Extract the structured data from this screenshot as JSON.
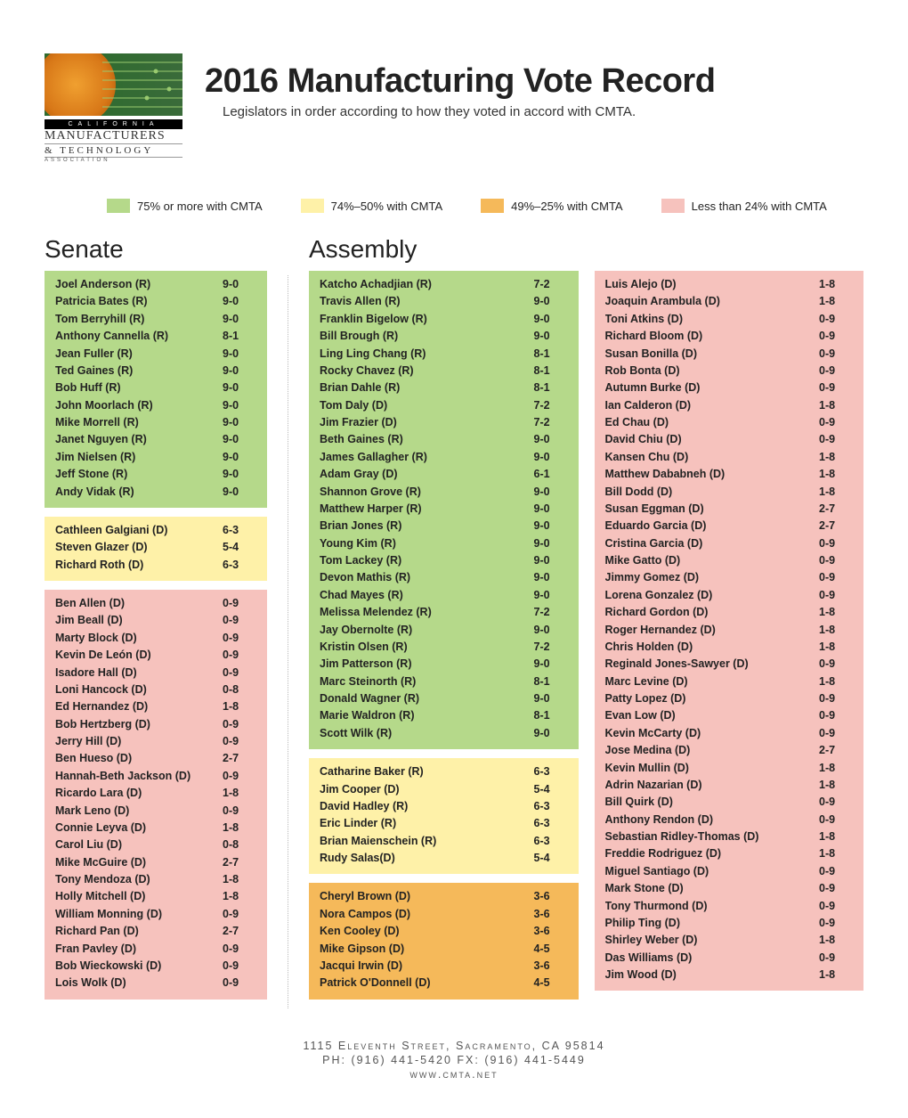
{
  "logo": {
    "line1": "CALIFORNIA",
    "line2": "MANUFACTURERS",
    "line3": "& TECHNOLOGY",
    "line4": "ASSOCIATION"
  },
  "title": "2016 Manufacturing Vote Record",
  "subtitle": "Legislators in order according to how they voted in accord with CMTA.",
  "colors": {
    "green": "#b5d98a",
    "yellow": "#fef1a8",
    "orange": "#f5b95a",
    "pink": "#f6c2bd",
    "text": "#1a1a1a"
  },
  "legend": [
    {
      "color": "#b5d98a",
      "label": "75% or more with CMTA"
    },
    {
      "color": "#fef1a8",
      "label": "74%–50% with CMTA"
    },
    {
      "color": "#f5b95a",
      "label": "49%–25% with CMTA"
    },
    {
      "color": "#f6c2bd",
      "label": "Less than 24% with CMTA"
    }
  ],
  "sections": {
    "senate_title": "Senate",
    "assembly_title": "Assembly"
  },
  "senate": [
    {
      "color": "#b5d98a",
      "rows": [
        {
          "name": "Joel Anderson (R)",
          "score": "9-0"
        },
        {
          "name": "Patricia Bates (R)",
          "score": "9-0"
        },
        {
          "name": "Tom Berryhill (R)",
          "score": "9-0"
        },
        {
          "name": "Anthony Cannella (R)",
          "score": "8-1"
        },
        {
          "name": "Jean Fuller (R)",
          "score": "9-0"
        },
        {
          "name": "Ted Gaines (R)",
          "score": "9-0"
        },
        {
          "name": "Bob Huff (R)",
          "score": "9-0"
        },
        {
          "name": "John Moorlach (R)",
          "score": "9-0"
        },
        {
          "name": "Mike Morrell (R)",
          "score": "9-0"
        },
        {
          "name": "Janet Nguyen (R)",
          "score": "9-0"
        },
        {
          "name": "Jim Nielsen (R)",
          "score": "9-0"
        },
        {
          "name": "Jeff Stone (R)",
          "score": "9-0"
        },
        {
          "name": "Andy Vidak (R)",
          "score": "9-0"
        }
      ]
    },
    {
      "color": "#fef1a8",
      "rows": [
        {
          "name": "Cathleen Galgiani (D)",
          "score": "6-3"
        },
        {
          "name": "Steven Glazer (D)",
          "score": "5-4"
        },
        {
          "name": "Richard Roth (D)",
          "score": "6-3"
        }
      ]
    },
    {
      "color": "#f6c2bd",
      "rows": [
        {
          "name": "Ben Allen (D)",
          "score": "0-9"
        },
        {
          "name": "Jim Beall (D)",
          "score": "0-9"
        },
        {
          "name": "Marty Block (D)",
          "score": "0-9"
        },
        {
          "name": "Kevin De León (D)",
          "score": "0-9"
        },
        {
          "name": "Isadore Hall (D)",
          "score": "0-9"
        },
        {
          "name": "Loni Hancock (D)",
          "score": "0-8"
        },
        {
          "name": "Ed Hernandez (D)",
          "score": "1-8"
        },
        {
          "name": "Bob Hertzberg (D)",
          "score": "0-9"
        },
        {
          "name": "Jerry Hill (D)",
          "score": "0-9"
        },
        {
          "name": "Ben Hueso (D)",
          "score": "2-7"
        },
        {
          "name": "Hannah-Beth Jackson (D)",
          "score": "0-9"
        },
        {
          "name": "Ricardo Lara (D)",
          "score": "1-8"
        },
        {
          "name": "Mark Leno (D)",
          "score": "0-9"
        },
        {
          "name": "Connie Leyva (D)",
          "score": "1-8"
        },
        {
          "name": "Carol Liu (D)",
          "score": "0-8"
        },
        {
          "name": "Mike McGuire (D)",
          "score": "2-7"
        },
        {
          "name": "Tony Mendoza (D)",
          "score": "1-8"
        },
        {
          "name": "Holly Mitchell (D)",
          "score": "1-8"
        },
        {
          "name": "William Monning (D)",
          "score": "0-9"
        },
        {
          "name": "Richard Pan (D)",
          "score": "2-7"
        },
        {
          "name": "Fran Pavley (D)",
          "score": "0-9"
        },
        {
          "name": "Bob Wieckowski (D)",
          "score": "0-9"
        },
        {
          "name": "Lois Wolk (D)",
          "score": "0-9"
        }
      ]
    }
  ],
  "assembly_left": [
    {
      "color": "#b5d98a",
      "rows": [
        {
          "name": "Katcho Achadjian (R)",
          "score": "7-2"
        },
        {
          "name": "Travis Allen (R)",
          "score": "9-0"
        },
        {
          "name": "Franklin Bigelow (R)",
          "score": "9-0"
        },
        {
          "name": "Bill Brough (R)",
          "score": "9-0"
        },
        {
          "name": "Ling Ling Chang (R)",
          "score": "8-1"
        },
        {
          "name": "Rocky Chavez (R)",
          "score": "8-1"
        },
        {
          "name": "Brian Dahle (R)",
          "score": "8-1"
        },
        {
          "name": "Tom Daly (D)",
          "score": "7-2"
        },
        {
          "name": "Jim Frazier (D)",
          "score": "7-2"
        },
        {
          "name": "Beth Gaines (R)",
          "score": "9-0"
        },
        {
          "name": "James Gallagher (R)",
          "score": "9-0"
        },
        {
          "name": "Adam Gray (D)",
          "score": "6-1"
        },
        {
          "name": "Shannon Grove (R)",
          "score": "9-0"
        },
        {
          "name": "Matthew Harper (R)",
          "score": "9-0"
        },
        {
          "name": "Brian Jones (R)",
          "score": "9-0"
        },
        {
          "name": "Young Kim (R)",
          "score": "9-0"
        },
        {
          "name": "Tom Lackey (R)",
          "score": "9-0"
        },
        {
          "name": "Devon Mathis (R)",
          "score": "9-0"
        },
        {
          "name": "Chad Mayes (R)",
          "score": "9-0"
        },
        {
          "name": "Melissa Melendez (R)",
          "score": "7-2"
        },
        {
          "name": "Jay Obernolte (R)",
          "score": "9-0"
        },
        {
          "name": "Kristin Olsen (R)",
          "score": "7-2"
        },
        {
          "name": "Jim Patterson (R)",
          "score": "9-0"
        },
        {
          "name": "Marc Steinorth (R)",
          "score": "8-1"
        },
        {
          "name": "Donald Wagner (R)",
          "score": "9-0"
        },
        {
          "name": "Marie Waldron (R)",
          "score": "8-1"
        },
        {
          "name": "Scott Wilk (R)",
          "score": "9-0"
        }
      ]
    },
    {
      "color": "#fef1a8",
      "rows": [
        {
          "name": "Catharine Baker (R)",
          "score": "6-3"
        },
        {
          "name": "Jim Cooper (D)",
          "score": "5-4"
        },
        {
          "name": "David Hadley (R)",
          "score": "6-3"
        },
        {
          "name": "Eric Linder (R)",
          "score": "6-3"
        },
        {
          "name": "Brian Maienschein (R)",
          "score": "6-3"
        },
        {
          "name": "Rudy Salas(D)",
          "score": "5-4"
        }
      ]
    },
    {
      "color": "#f5b95a",
      "rows": [
        {
          "name": "Cheryl Brown (D)",
          "score": "3-6"
        },
        {
          "name": "Nora Campos (D)",
          "score": "3-6"
        },
        {
          "name": "Ken Cooley (D)",
          "score": "3-6"
        },
        {
          "name": "Mike Gipson (D)",
          "score": "4-5"
        },
        {
          "name": "Jacqui Irwin (D)",
          "score": "3-6"
        },
        {
          "name": "Patrick O'Donnell (D)",
          "score": "4-5"
        }
      ]
    }
  ],
  "assembly_right": [
    {
      "color": "#f6c2bd",
      "rows": [
        {
          "name": "Luis Alejo (D)",
          "score": "1-8"
        },
        {
          "name": "Joaquin Arambula (D)",
          "score": "1-8"
        },
        {
          "name": "Toni Atkins (D)",
          "score": "0-9"
        },
        {
          "name": "Richard Bloom (D)",
          "score": "0-9"
        },
        {
          "name": "Susan Bonilla (D)",
          "score": "0-9"
        },
        {
          "name": "Rob Bonta (D)",
          "score": "0-9"
        },
        {
          "name": "Autumn Burke (D)",
          "score": "0-9"
        },
        {
          "name": "Ian Calderon (D)",
          "score": "1-8"
        },
        {
          "name": "Ed Chau (D)",
          "score": "0-9"
        },
        {
          "name": "David Chiu (D)",
          "score": "0-9"
        },
        {
          "name": "Kansen Chu (D)",
          "score": "1-8"
        },
        {
          "name": "Matthew Dababneh (D)",
          "score": "1-8"
        },
        {
          "name": "Bill Dodd (D)",
          "score": "1-8"
        },
        {
          "name": "Susan Eggman (D)",
          "score": "2-7"
        },
        {
          "name": "Eduardo Garcia (D)",
          "score": "2-7"
        },
        {
          "name": "Cristina Garcia (D)",
          "score": "0-9"
        },
        {
          "name": "Mike Gatto (D)",
          "score": "0-9"
        },
        {
          "name": "Jimmy Gomez (D)",
          "score": "0-9"
        },
        {
          "name": "Lorena Gonzalez (D)",
          "score": "0-9"
        },
        {
          "name": "Richard Gordon (D)",
          "score": "1-8"
        },
        {
          "name": "Roger Hernandez (D)",
          "score": "1-8"
        },
        {
          "name": "Chris Holden (D)",
          "score": "1-8"
        },
        {
          "name": "Reginald Jones-Sawyer (D)",
          "score": "0-9"
        },
        {
          "name": "Marc Levine (D)",
          "score": "1-8"
        },
        {
          "name": "Patty Lopez (D)",
          "score": "0-9"
        },
        {
          "name": "Evan Low (D)",
          "score": "0-9"
        },
        {
          "name": "Kevin McCarty (D)",
          "score": "0-9"
        },
        {
          "name": "Jose Medina (D)",
          "score": "2-7"
        },
        {
          "name": "Kevin Mullin (D)",
          "score": "1-8"
        },
        {
          "name": "Adrin Nazarian (D)",
          "score": "1-8"
        },
        {
          "name": "Bill Quirk (D)",
          "score": "0-9"
        },
        {
          "name": "Anthony Rendon (D)",
          "score": "0-9"
        },
        {
          "name": "Sebastian Ridley-Thomas (D)",
          "score": "1-8"
        },
        {
          "name": "Freddie Rodriguez (D)",
          "score": "1-8"
        },
        {
          "name": "Miguel Santiago (D)",
          "score": "0-9"
        },
        {
          "name": "Mark Stone (D)",
          "score": "0-9"
        },
        {
          "name": "Tony Thurmond (D)",
          "score": "0-9"
        },
        {
          "name": "Philip Ting (D)",
          "score": "0-9"
        },
        {
          "name": "Shirley Weber (D)",
          "score": "1-8"
        },
        {
          "name": "Das Williams (D)",
          "score": "0-9"
        },
        {
          "name": "Jim Wood (D)",
          "score": "1-8"
        }
      ]
    }
  ],
  "footer": {
    "line1": "1115 Eleventh Street, Sacramento, CA 95814",
    "line2": "PH: (916) 441-5420  FX: (916) 441-5449",
    "line3": "www.cmta.net"
  }
}
